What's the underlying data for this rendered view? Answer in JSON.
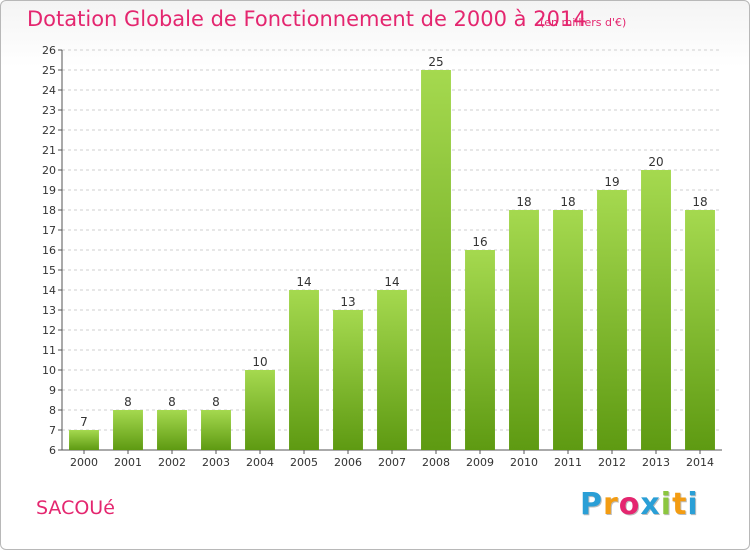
{
  "title": "Dotation Globale de Fonctionnement de 2000 à 2014",
  "subtitle": "(en milliers d'€)",
  "commune": "SACOUé",
  "logo": {
    "letters": [
      "P",
      "r",
      "o",
      "x",
      "i",
      "t",
      "i"
    ],
    "colors": [
      "#2a9fd6",
      "#f39c12",
      "#e4266f",
      "#2a9fd6",
      "#8cc63f",
      "#f39c12",
      "#2a9fd6"
    ]
  },
  "colors": {
    "accent": "#e4266f",
    "bar_top": "#a5d94f",
    "bar_bottom": "#5e9a12",
    "grid": "#cfcfcf"
  },
  "chart_data": {
    "type": "bar",
    "title": "Dotation Globale de Fonctionnement de 2000 à 2014",
    "subtitle": "(en milliers d'€)",
    "categories": [
      "2000",
      "2001",
      "2002",
      "2003",
      "2004",
      "2005",
      "2006",
      "2007",
      "2008",
      "2009",
      "2010",
      "2011",
      "2012",
      "2013",
      "2014"
    ],
    "values": [
      7,
      8,
      8,
      8,
      10,
      14,
      13,
      14,
      25,
      16,
      18,
      18,
      19,
      20,
      18
    ],
    "ylim": [
      6,
      26
    ],
    "yticks": [
      "6",
      "7",
      "8",
      "9",
      "10",
      "11",
      "12",
      "13",
      "14",
      "15",
      "16",
      "17",
      "18",
      "19",
      "20",
      "21",
      "22",
      "23",
      "24",
      "25",
      "26"
    ],
    "grid": true,
    "data_labels": true
  }
}
